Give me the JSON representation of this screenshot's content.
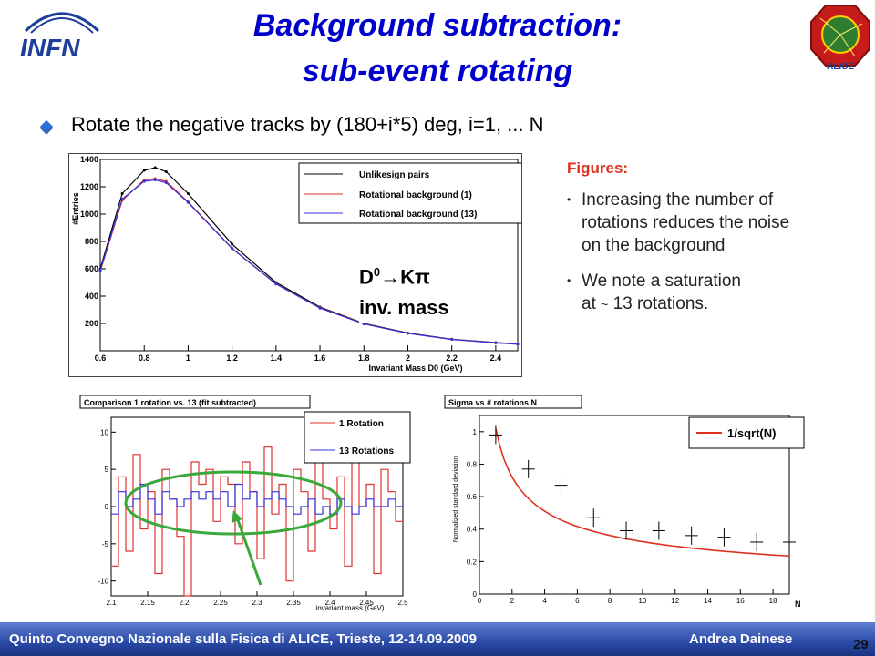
{
  "logos": {
    "infn": "INFN",
    "alice": "ALICE"
  },
  "title": {
    "line1": "Background subtraction:",
    "line2": "sub-event rotating"
  },
  "bullet": "Rotate the negative tracks by (180+i*5) deg, i=1, ... N",
  "top_plot": {
    "ylabel": "#Entries",
    "xlabel": "Invariant Mass D0 (GeV)",
    "legend": [
      "Unlikesign pairs",
      "Rotational background (1)",
      "Rotational background (13)"
    ],
    "annotation_line1": "D",
    "annotation_sup": "0",
    "annotation_arrow": "→",
    "annotation_rest": "Kπ",
    "annotation_line2": "inv. mass",
    "colors": {
      "unlike": "#000000",
      "rot1": "#e03030",
      "rot13": "#3030e0"
    }
  },
  "side_notes": {
    "heading": "Figures:",
    "item1": "Increasing the number of rotations reduces the noise on the background",
    "item2_a": "We note a saturation",
    "item2_b": "at",
    "item2_tilde": "~",
    "item2_c": "13 rotations."
  },
  "bottom_left": {
    "title": "Comparison 1 rotation vs. 13 (fit subtracted)",
    "legend": [
      "1 Rotation",
      "13 Rotations"
    ],
    "xlabel": "invariant mass (GeV)"
  },
  "bottom_right": {
    "title": "Sigma vs # rotations N",
    "ylabel": "Normalized standard deviation",
    "xlabel": "N",
    "legend": "1/sqrt(N)"
  },
  "footer": {
    "left": "Quinto Convegno Nazionale sulla Fisica di ALICE, Trieste, 12-14.09.2009",
    "right": "Andrea Dainese",
    "page": "29"
  },
  "chart_data": [
    {
      "type": "line",
      "x": [
        0.6,
        0.7,
        0.8,
        0.85,
        0.9,
        1.0,
        1.2,
        1.4,
        1.6,
        1.8,
        2.0,
        2.2,
        2.4,
        2.5
      ],
      "series": [
        {
          "name": "Unlikesign pairs",
          "values": [
            600,
            1150,
            1320,
            1340,
            1310,
            1150,
            780,
            500,
            320,
            200,
            130,
            85,
            60,
            50
          ]
        },
        {
          "name": "Rotational background (1)",
          "values": [
            580,
            1100,
            1250,
            1260,
            1240,
            1090,
            750,
            490,
            315,
            198,
            128,
            84,
            58,
            48
          ]
        },
        {
          "name": "Rotational background (13)",
          "values": [
            590,
            1110,
            1240,
            1250,
            1230,
            1085,
            748,
            488,
            312,
            196,
            127,
            83,
            57,
            48
          ]
        }
      ],
      "xlim": [
        0.6,
        2.5
      ],
      "ylim": [
        0,
        1400
      ],
      "x_ticks": [
        "0.6",
        "0.8",
        "1",
        "1.2",
        "1.4",
        "1.6",
        "1.8",
        "2",
        "2.2",
        "2.4"
      ],
      "y_ticks": [
        "200",
        "400",
        "600",
        "800",
        "1000",
        "1200",
        "1400"
      ],
      "xlabel": "Invariant Mass D0 (GeV)",
      "ylabel": "#Entries"
    },
    {
      "type": "line",
      "x": [
        2.1,
        2.11,
        2.12,
        2.13,
        2.14,
        2.15,
        2.16,
        2.17,
        2.18,
        2.19,
        2.2,
        2.21,
        2.22,
        2.23,
        2.24,
        2.25,
        2.26,
        2.27,
        2.28,
        2.29,
        2.3,
        2.31,
        2.32,
        2.33,
        2.34,
        2.35,
        2.36,
        2.37,
        2.38,
        2.39,
        2.4,
        2.41,
        2.42,
        2.43,
        2.44,
        2.45,
        2.46,
        2.47,
        2.48,
        2.49
      ],
      "series": [
        {
          "name": "1 Rotation",
          "values": [
            -8,
            4,
            -6,
            7,
            -3,
            2,
            -9,
            5,
            1,
            -4,
            -12,
            6,
            3,
            5,
            -2,
            4,
            3,
            -5,
            6,
            2,
            -7,
            8,
            -1,
            3,
            -10,
            5,
            2,
            -6,
            7,
            1,
            -3,
            4,
            -8,
            6,
            0,
            3,
            -9,
            5,
            2,
            -2
          ],
          "values_13_note": ""
        },
        {
          "name": "13 Rotations",
          "values": [
            -1,
            2,
            0,
            1,
            3,
            1,
            -1,
            2,
            1,
            0,
            1,
            2,
            1,
            2,
            1,
            2,
            0,
            3,
            1,
            2,
            0,
            1,
            2,
            1,
            0,
            -1,
            0,
            1,
            -1,
            0,
            -1,
            1,
            0,
            -1,
            0,
            1,
            0,
            0,
            1,
            0
          ]
        }
      ],
      "xlim": [
        2.1,
        2.5
      ],
      "ylim": [
        -12,
        12
      ],
      "x_ticks": [
        "2.1",
        "2.15",
        "2.2",
        "2.25",
        "2.3",
        "2.35",
        "2.4",
        "2.45",
        "2.5"
      ],
      "y_ticks": [
        "-10",
        "-5",
        "0",
        "5",
        "10"
      ],
      "xlabel": "invariant mass (GeV)"
    },
    {
      "type": "scatter",
      "x": [
        1,
        3,
        5,
        7,
        9,
        11,
        13,
        15,
        17,
        19
      ],
      "values": [
        0.98,
        0.77,
        0.67,
        0.47,
        0.39,
        0.39,
        0.36,
        0.35,
        0.32,
        0.32
      ],
      "fit": {
        "name": "1/sqrt(N)"
      },
      "xlim": [
        0,
        19
      ],
      "ylim": [
        0,
        1.1
      ],
      "x_ticks": [
        "0",
        "2",
        "4",
        "6",
        "8",
        "10",
        "12",
        "14",
        "16",
        "18"
      ],
      "y_ticks": [
        "0",
        "0.2",
        "0.4",
        "0.6",
        "0.8",
        "1"
      ],
      "xlabel": "N",
      "ylabel": "Normalized standard deviation"
    }
  ]
}
